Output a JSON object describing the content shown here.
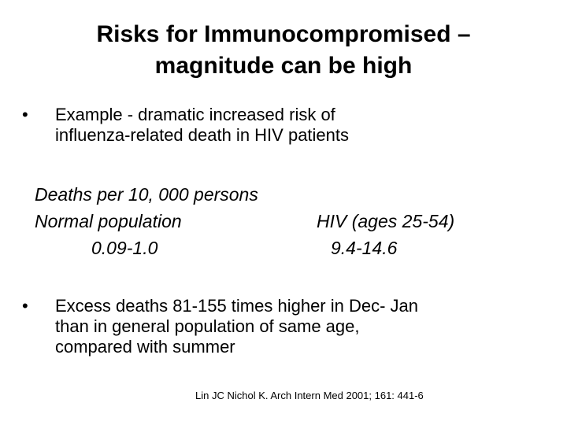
{
  "title": {
    "line1": "Risks for Immunocompromised –",
    "line2": "magnitude can be high"
  },
  "bullets": [
    {
      "marker": "•",
      "lines": [
        "Example - dramatic increased risk of",
        "influenza-related death in HIV patients"
      ]
    },
    {
      "marker": "•",
      "lines": [
        "Excess deaths 81-155 times higher in Dec- Jan",
        "than in general population of same age,",
        "compared with summer"
      ]
    }
  ],
  "stats": {
    "heading": "Deaths per 10, 000 persons",
    "normal_label": "Normal population",
    "normal_value": "0.09-1.0",
    "hiv_label": "HIV (ages 25-54)",
    "hiv_value": "9.4-14.6"
  },
  "citation": "Lin JC Nichol K. Arch Intern Med 2001; 161: 441-6"
}
